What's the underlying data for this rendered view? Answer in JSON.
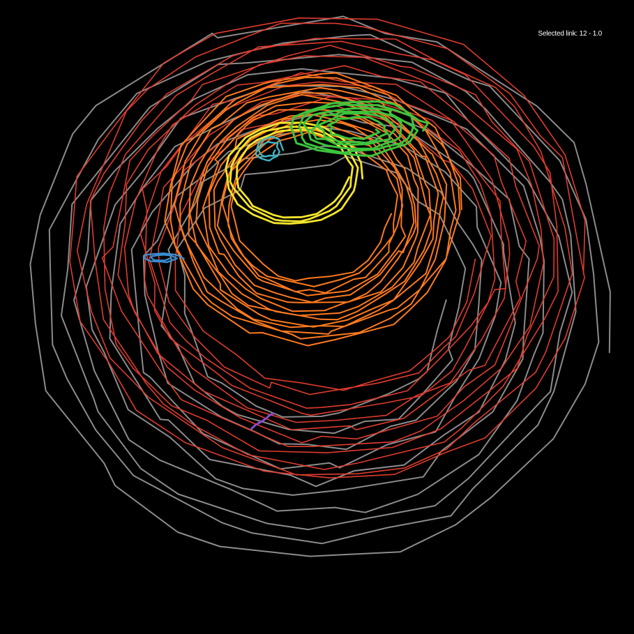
{
  "status": {
    "selected_label": "Selected link: 12 - 1.0"
  },
  "trails": [
    {
      "name": "gray-trail",
      "color": "#8c8c8c",
      "loops": 10,
      "segments": 26
    },
    {
      "name": "red-trail",
      "color": "#e03c2e",
      "loops": 12,
      "segments": 26
    },
    {
      "name": "orange-trail",
      "color": "#ff7a1e",
      "loops": 14,
      "segments": 26
    },
    {
      "name": "yellow-trail",
      "color": "#f5e52a",
      "loops": 3,
      "segments": 24
    },
    {
      "name": "green-trail",
      "color": "#3cc43c",
      "loops": 6,
      "segments": 22
    },
    {
      "name": "cyan-trail",
      "color": "#3cb8c8",
      "loops": 2,
      "segments": 14
    },
    {
      "name": "blue-trail",
      "color": "#3a8cd0",
      "loops": 2,
      "segments": 12
    },
    {
      "name": "purple-trail",
      "color": "#8a4cc8",
      "loops": 1,
      "segments": 6
    }
  ]
}
